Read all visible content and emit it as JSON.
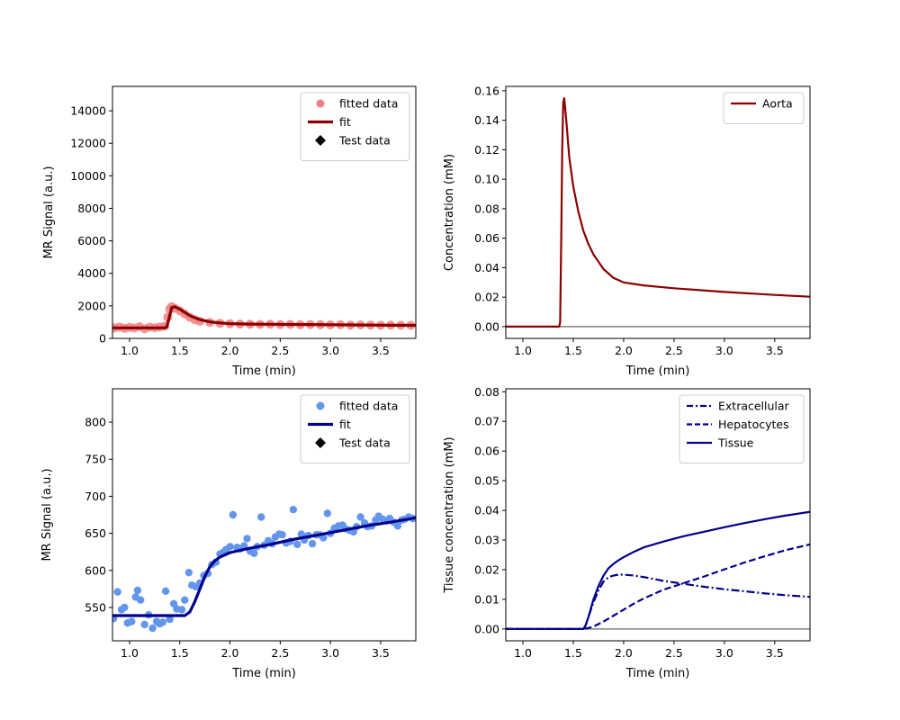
{
  "chart_data": [
    {
      "type": "scatter",
      "xlabel": "Time (min)",
      "ylabel": "MR Signal (a.u.)",
      "xlim": [
        0.83,
        3.85
      ],
      "ylim": [
        0,
        15500
      ],
      "xticks": [
        1.0,
        1.5,
        2.0,
        2.5,
        3.0,
        3.5
      ],
      "xtick_labels": [
        "1.0",
        "1.5",
        "2.0",
        "2.5",
        "3.0",
        "3.5"
      ],
      "yticks": [
        0,
        2000,
        4000,
        6000,
        8000,
        10000,
        12000,
        14000
      ],
      "ytick_labels": [
        "0",
        "2000",
        "4000",
        "6000",
        "8000",
        "10000",
        "12000",
        "14000"
      ],
      "legend_position": "top-right",
      "legend": [
        "fitted data",
        "fit",
        "Test data"
      ],
      "colors": {
        "points": "#f08080",
        "fit": "#8b0000",
        "test": "#000000"
      },
      "series": [
        {
          "name": "fitted data",
          "kind": "points",
          "x": [
            0.85,
            0.9,
            0.95,
            1.0,
            1.05,
            1.1,
            1.15,
            1.2,
            1.25,
            1.3,
            1.35,
            1.38,
            1.4,
            1.42,
            1.45,
            1.5,
            1.55,
            1.6,
            1.65,
            1.7,
            1.8,
            1.9,
            2.0,
            2.1,
            2.2,
            2.3,
            2.4,
            2.5,
            2.6,
            2.7,
            2.8,
            2.9,
            3.0,
            3.1,
            3.2,
            3.3,
            3.4,
            3.5,
            3.6,
            3.7,
            3.8
          ],
          "y": [
            650,
            700,
            620,
            680,
            640,
            720,
            600,
            690,
            660,
            700,
            750,
            1300,
            1800,
            1950,
            1850,
            1700,
            1500,
            1300,
            1150,
            1050,
            980,
            930,
            900,
            880,
            870,
            860,
            870,
            850,
            860,
            840,
            850,
            840,
            830,
            840,
            820,
            830,
            820,
            810,
            820,
            810,
            800
          ]
        },
        {
          "name": "fit",
          "kind": "line",
          "x": [
            0.83,
            1.35,
            1.37,
            1.4,
            1.42,
            1.45,
            1.5,
            1.55,
            1.6,
            1.7,
            1.8,
            1.9,
            2.0,
            2.2,
            2.4,
            2.6,
            2.8,
            3.0,
            3.2,
            3.4,
            3.6,
            3.85
          ],
          "y": [
            650,
            650,
            700,
            1400,
            1900,
            1950,
            1800,
            1600,
            1400,
            1150,
            1020,
            950,
            910,
            880,
            870,
            860,
            850,
            840,
            830,
            820,
            810,
            800
          ]
        }
      ]
    },
    {
      "type": "line",
      "xlabel": "Time (min)",
      "ylabel": "Concentration (mM)",
      "xlim": [
        0.83,
        3.85
      ],
      "ylim": [
        -0.008,
        0.163
      ],
      "xticks": [
        1.0,
        1.5,
        2.0,
        2.5,
        3.0,
        3.5
      ],
      "xtick_labels": [
        "1.0",
        "1.5",
        "2.0",
        "2.5",
        "3.0",
        "3.5"
      ],
      "yticks": [
        0,
        0.02,
        0.04,
        0.06,
        0.08,
        0.1,
        0.12,
        0.14,
        0.16
      ],
      "ytick_labels": [
        "0.00",
        "0.02",
        "0.04",
        "0.06",
        "0.08",
        "0.10",
        "0.12",
        "0.14",
        "0.16"
      ],
      "legend_position": "top-right",
      "legend": [
        "Aorta"
      ],
      "colors": {
        "Aorta": "#8b0000",
        "zero": "#808080"
      },
      "series": [
        {
          "name": "Aorta",
          "kind": "line",
          "x": [
            0.83,
            1.36,
            1.37,
            1.38,
            1.39,
            1.4,
            1.41,
            1.43,
            1.46,
            1.5,
            1.55,
            1.6,
            1.65,
            1.7,
            1.8,
            1.9,
            2.0,
            2.2,
            2.5,
            3.0,
            3.5,
            3.85
          ],
          "y": [
            0,
            0,
            0.003,
            0.06,
            0.12,
            0.152,
            0.155,
            0.14,
            0.115,
            0.095,
            0.078,
            0.065,
            0.056,
            0.049,
            0.039,
            0.033,
            0.03,
            0.028,
            0.026,
            0.0235,
            0.0215,
            0.0203
          ]
        }
      ]
    },
    {
      "type": "scatter",
      "xlabel": "Time (min)",
      "ylabel": "MR Signal (a.u.)",
      "xlim": [
        0.83,
        3.85
      ],
      "ylim": [
        505,
        845
      ],
      "xticks": [
        1.0,
        1.5,
        2.0,
        2.5,
        3.0,
        3.5
      ],
      "xtick_labels": [
        "1.0",
        "1.5",
        "2.0",
        "2.5",
        "3.0",
        "3.5"
      ],
      "yticks": [
        550,
        600,
        650,
        700,
        750,
        800
      ],
      "ytick_labels": [
        "550",
        "600",
        "650",
        "700",
        "750",
        "800"
      ],
      "legend_position": "top-right",
      "legend": [
        "fitted data",
        "fit",
        "Test data"
      ],
      "colors": {
        "points": "#6495ed",
        "fit": "#00008b",
        "test": "#000000"
      },
      "series": [
        {
          "name": "fitted data",
          "kind": "points",
          "x": [
            0.84,
            0.88,
            0.92,
            0.95,
            0.98,
            1.02,
            1.06,
            1.08,
            1.11,
            1.15,
            1.19,
            1.23,
            1.27,
            1.3,
            1.33,
            1.36,
            1.4,
            1.44,
            1.47,
            1.52,
            1.55,
            1.59,
            1.62,
            1.66,
            1.7,
            1.74,
            1.78,
            1.82,
            1.86,
            1.9,
            1.93,
            1.96,
            2.0,
            2.03,
            2.07,
            2.1,
            2.14,
            2.17,
            2.2,
            2.24,
            2.27,
            2.31,
            2.34,
            2.38,
            2.42,
            2.45,
            2.49,
            2.52,
            2.56,
            2.6,
            2.63,
            2.67,
            2.71,
            2.74,
            2.78,
            2.82,
            2.86,
            2.89,
            2.93,
            2.97,
            3.0,
            3.04,
            3.08,
            3.12,
            3.15,
            3.19,
            3.23,
            3.26,
            3.3,
            3.34,
            3.37,
            3.41,
            3.45,
            3.48,
            3.52,
            3.56,
            3.59,
            3.63,
            3.67,
            3.71,
            3.74,
            3.78,
            3.82
          ],
          "y": [
            535,
            571,
            547,
            550,
            529,
            531,
            564,
            573,
            560,
            527,
            540,
            522,
            531,
            528,
            530,
            572,
            534,
            555,
            548,
            547,
            560,
            597,
            580,
            578,
            583,
            593,
            596,
            608,
            611,
            622,
            624,
            628,
            632,
            675,
            631,
            629,
            633,
            643,
            626,
            623,
            632,
            672,
            634,
            640,
            636,
            645,
            649,
            648,
            637,
            639,
            682,
            635,
            649,
            641,
            647,
            636,
            648,
            648,
            644,
            677,
            650,
            657,
            660,
            661,
            656,
            654,
            652,
            659,
            672,
            664,
            659,
            660,
            668,
            673,
            669,
            667,
            670,
            665,
            660,
            668,
            669,
            672,
            670
          ]
        },
        {
          "name": "fit",
          "kind": "line",
          "x": [
            0.83,
            1.55,
            1.6,
            1.65,
            1.7,
            1.75,
            1.8,
            1.85,
            1.9,
            1.95,
            2.0,
            2.1,
            2.2,
            2.4,
            2.6,
            2.8,
            3.0,
            3.2,
            3.4,
            3.6,
            3.85
          ],
          "y": [
            539,
            539,
            544,
            558,
            575,
            592,
            605,
            613,
            618,
            621,
            624,
            627,
            630,
            635,
            641,
            646,
            651,
            656,
            661,
            665,
            671
          ]
        }
      ]
    },
    {
      "type": "line",
      "xlabel": "Time (min)",
      "ylabel": "Tissue concentration (mM)",
      "xlim": [
        0.83,
        3.85
      ],
      "ylim": [
        -0.004,
        0.081
      ],
      "xticks": [
        1.0,
        1.5,
        2.0,
        2.5,
        3.0,
        3.5
      ],
      "xtick_labels": [
        "1.0",
        "1.5",
        "2.0",
        "2.5",
        "3.0",
        "3.5"
      ],
      "yticks": [
        0,
        0.01,
        0.02,
        0.03,
        0.04,
        0.05,
        0.06,
        0.07,
        0.08
      ],
      "ytick_labels": [
        "0.00",
        "0.01",
        "0.02",
        "0.03",
        "0.04",
        "0.05",
        "0.06",
        "0.07",
        "0.08"
      ],
      "legend_position": "top-right",
      "legend": [
        "Extracellular",
        "Hepatocytes",
        "Tissue"
      ],
      "colors": {
        "Extracellular": "#00008b",
        "Hepatocytes": "#00008b",
        "Tissue": "#00008b",
        "zero": "#808080"
      },
      "series": [
        {
          "name": "Extracellular",
          "kind": "line",
          "dash": "dashdot",
          "x": [
            0.83,
            1.6,
            1.62,
            1.65,
            1.7,
            1.75,
            1.8,
            1.85,
            1.9,
            1.95,
            2.0,
            2.1,
            2.2,
            2.4,
            2.6,
            2.8,
            3.0,
            3.2,
            3.4,
            3.6,
            3.85
          ],
          "y": [
            0,
            0,
            0.001,
            0.004,
            0.009,
            0.013,
            0.016,
            0.0175,
            0.018,
            0.0183,
            0.0183,
            0.018,
            0.0175,
            0.0162,
            0.0152,
            0.0142,
            0.0134,
            0.0127,
            0.012,
            0.0114,
            0.0108
          ]
        },
        {
          "name": "Hepatocytes",
          "kind": "line",
          "dash": "dashed",
          "x": [
            0.83,
            1.6,
            1.65,
            1.7,
            1.8,
            1.9,
            2.0,
            2.1,
            2.2,
            2.4,
            2.6,
            2.8,
            3.0,
            3.2,
            3.4,
            3.6,
            3.85
          ],
          "y": [
            0,
            0,
            0.0003,
            0.0008,
            0.0025,
            0.0045,
            0.0065,
            0.0085,
            0.0103,
            0.0133,
            0.0155,
            0.0177,
            0.0201,
            0.0224,
            0.0245,
            0.0265,
            0.0285
          ]
        },
        {
          "name": "Tissue",
          "kind": "line",
          "dash": "solid",
          "x": [
            0.83,
            1.6,
            1.62,
            1.65,
            1.7,
            1.75,
            1.8,
            1.85,
            1.9,
            1.95,
            2.0,
            2.1,
            2.2,
            2.4,
            2.6,
            2.8,
            3.0,
            3.2,
            3.4,
            3.6,
            3.85
          ],
          "y": [
            0,
            0,
            0.001,
            0.004,
            0.01,
            0.0145,
            0.018,
            0.0205,
            0.022,
            0.0232,
            0.0242,
            0.026,
            0.0275,
            0.0295,
            0.0313,
            0.0328,
            0.0343,
            0.0357,
            0.037,
            0.0382,
            0.0395
          ]
        }
      ]
    }
  ]
}
